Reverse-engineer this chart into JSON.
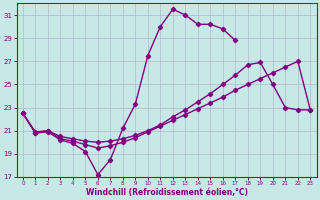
{
  "line1_x": [
    0,
    1,
    2,
    3,
    4,
    5,
    6,
    7,
    8,
    9,
    10,
    11,
    12,
    13,
    14,
    15,
    16,
    17
  ],
  "line1_y": [
    22.5,
    20.8,
    20.9,
    20.2,
    19.9,
    19.2,
    17.2,
    18.5,
    21.2,
    23.3,
    27.5,
    30.0,
    31.5,
    31.0,
    30.2,
    30.2,
    29.8,
    28.8
  ],
  "line2_x": [
    0,
    1,
    2,
    3,
    4,
    5,
    6,
    7,
    8,
    9,
    10,
    11,
    12,
    13,
    14,
    15,
    16,
    17,
    18,
    19,
    20,
    21,
    22,
    23
  ],
  "line2_y": [
    22.5,
    20.9,
    21.0,
    20.5,
    20.3,
    20.1,
    20.0,
    20.1,
    20.3,
    20.6,
    21.0,
    21.5,
    22.2,
    22.8,
    23.5,
    24.2,
    25.0,
    25.8,
    26.7,
    26.9,
    25.0,
    23.0,
    22.8,
    22.8
  ],
  "line3_x": [
    0,
    1,
    2,
    3,
    4,
    5,
    6,
    7,
    8,
    9,
    10,
    11,
    12,
    13,
    14,
    15,
    16,
    17,
    18,
    19,
    20,
    21,
    22,
    23
  ],
  "line3_y": [
    22.5,
    20.8,
    21.0,
    20.3,
    20.1,
    19.8,
    19.5,
    19.7,
    20.0,
    20.4,
    20.9,
    21.4,
    21.9,
    22.4,
    22.9,
    23.4,
    23.9,
    24.5,
    25.0,
    25.5,
    26.0,
    26.5,
    27.0,
    22.8
  ],
  "ylim": [
    17,
    32
  ],
  "xlim": [
    -0.5,
    23.5
  ],
  "yticks": [
    17,
    19,
    21,
    23,
    25,
    27,
    29,
    31
  ],
  "xticks": [
    0,
    1,
    2,
    3,
    4,
    5,
    6,
    7,
    8,
    9,
    10,
    11,
    12,
    13,
    14,
    15,
    16,
    17,
    18,
    19,
    20,
    21,
    22,
    23
  ],
  "xlabel": "Windchill (Refroidissement éolien,°C)",
  "line_color": "#800080",
  "bg_color": "#c8e8e8",
  "grid_color": "#b0b8cc",
  "marker": "D",
  "marker_size": 2.2,
  "linewidth": 1.0
}
